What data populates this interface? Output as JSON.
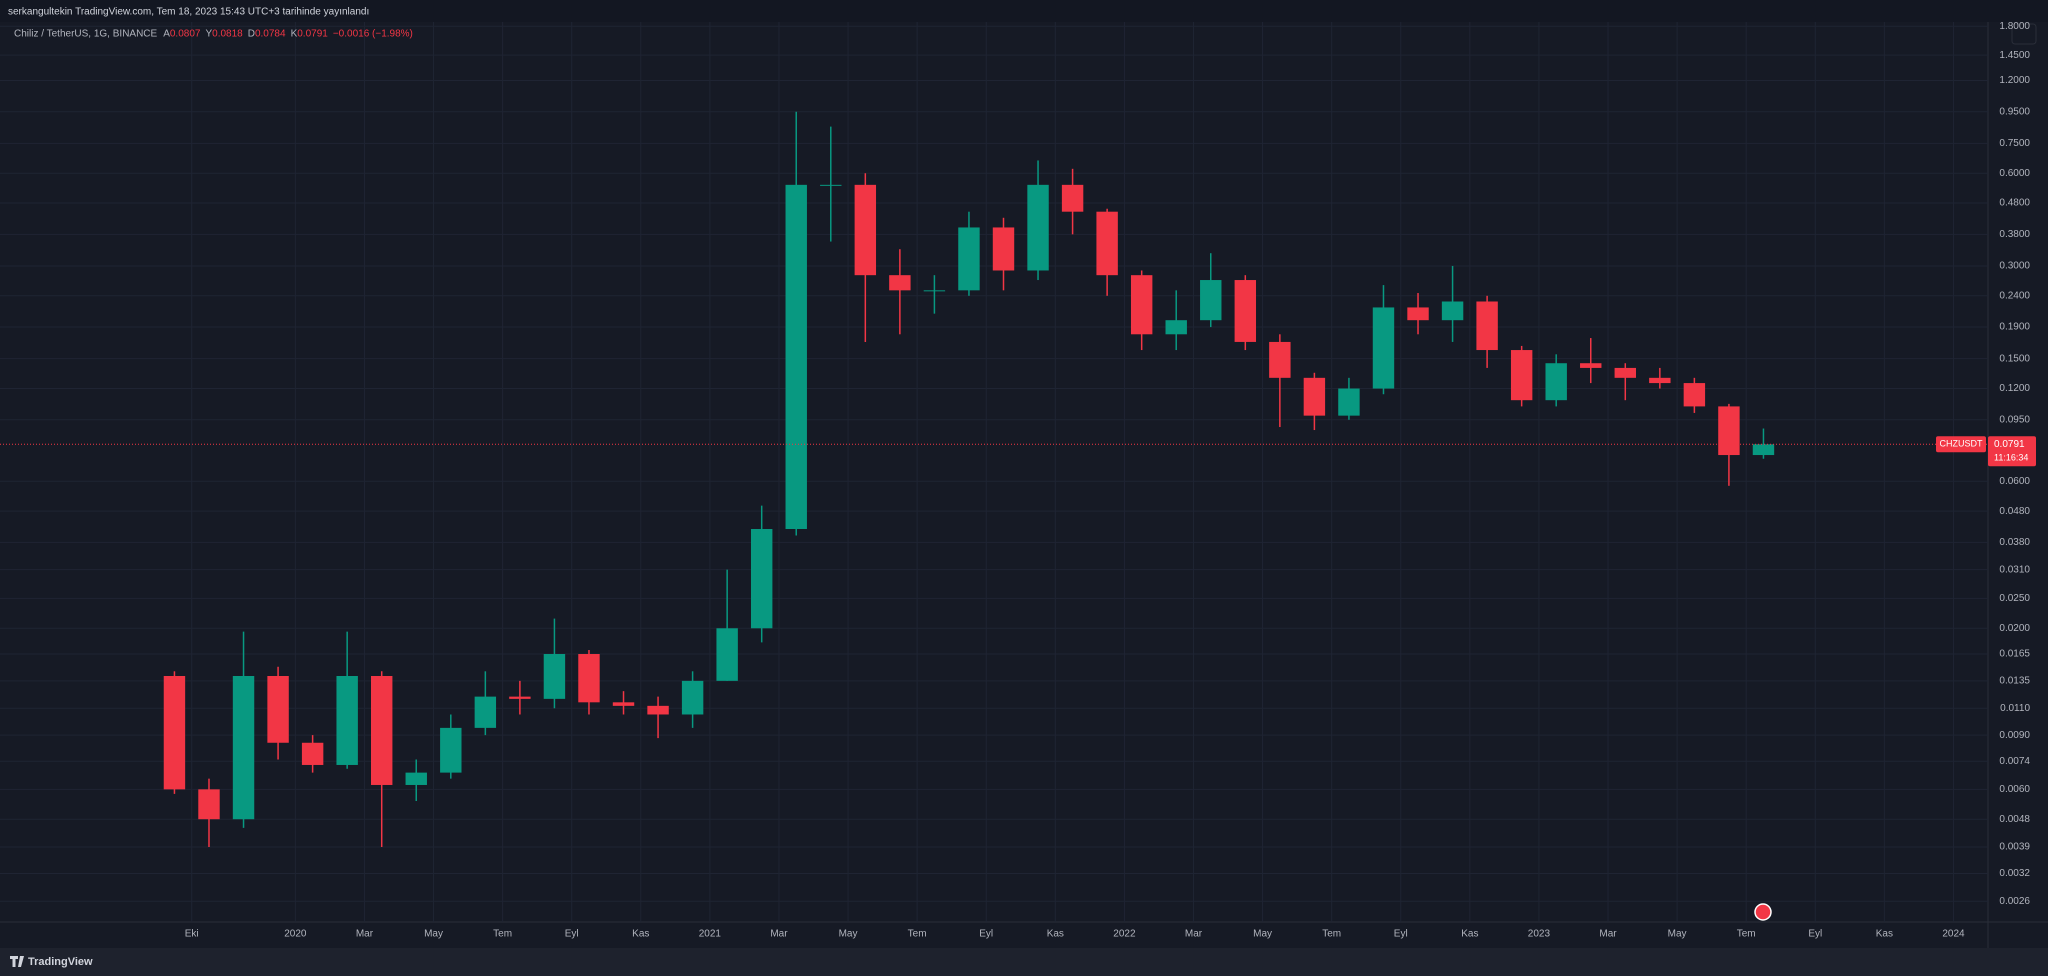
{
  "header": {
    "attribution": "serkangultekin TradingView.com, Tem 18, 2023 15:43 UTC+3 tarihinde yayınlandı"
  },
  "legend": {
    "symbol": "Chiliz / TetherUS, 1G, BINANCE",
    "ohlc": [
      {
        "label": "A",
        "value": 0.0807
      },
      {
        "label": "Y",
        "value": 0.0818
      },
      {
        "label": "D",
        "value": 0.0784
      },
      {
        "label": "K",
        "value": 0.0791
      }
    ],
    "change": "−0.0016 (−1.98%)"
  },
  "chart_data": {
    "type": "candlestick",
    "log_scale": true,
    "grid": true,
    "up_color": "#089981",
    "down_color": "#f23645",
    "x": [
      "2019-09",
      "2019-10",
      "2019-11",
      "2019-12",
      "2020-01",
      "2020-02",
      "2020-03",
      "2020-04",
      "2020-05",
      "2020-06",
      "2020-07",
      "2020-08",
      "2020-09",
      "2020-10",
      "2020-11",
      "2020-12",
      "2021-01",
      "2021-02",
      "2021-03",
      "2021-04",
      "2021-05",
      "2021-06",
      "2021-07",
      "2021-08",
      "2021-09",
      "2021-10",
      "2021-11",
      "2021-12",
      "2022-01",
      "2022-02",
      "2022-03",
      "2022-04",
      "2022-05",
      "2022-06",
      "2022-07",
      "2022-08",
      "2022-09",
      "2022-10",
      "2022-11",
      "2022-12",
      "2023-01",
      "2023-02",
      "2023-03",
      "2023-04",
      "2023-05",
      "2023-06",
      "2023-07"
    ],
    "open": [
      0.014,
      0.006,
      0.0048,
      0.014,
      0.0085,
      0.0072,
      0.014,
      0.0062,
      0.0068,
      0.0095,
      0.012,
      0.0118,
      0.0165,
      0.0115,
      0.0112,
      0.0105,
      0.0135,
      0.02,
      0.042,
      0.55,
      0.55,
      0.28,
      0.25,
      0.25,
      0.4,
      0.29,
      0.55,
      0.45,
      0.28,
      0.18,
      0.2,
      0.27,
      0.17,
      0.13,
      0.098,
      0.12,
      0.22,
      0.2,
      0.23,
      0.16,
      0.11,
      0.145,
      0.14,
      0.13,
      0.125,
      0.105,
      0.073
    ],
    "high": [
      0.0145,
      0.0065,
      0.0195,
      0.015,
      0.009,
      0.0195,
      0.0145,
      0.0075,
      0.0105,
      0.0145,
      0.0135,
      0.0215,
      0.017,
      0.0125,
      0.012,
      0.0145,
      0.031,
      0.05,
      0.95,
      0.85,
      0.6,
      0.34,
      0.28,
      0.45,
      0.43,
      0.66,
      0.62,
      0.46,
      0.29,
      0.25,
      0.33,
      0.28,
      0.18,
      0.135,
      0.13,
      0.26,
      0.245,
      0.3,
      0.24,
      0.165,
      0.155,
      0.175,
      0.145,
      0.14,
      0.13,
      0.107,
      0.089
    ],
    "low": [
      0.0058,
      0.0039,
      0.0045,
      0.0075,
      0.0068,
      0.007,
      0.0039,
      0.0055,
      0.0065,
      0.009,
      0.0105,
      0.011,
      0.0105,
      0.0105,
      0.0088,
      0.0095,
      0.0135,
      0.018,
      0.04,
      0.36,
      0.17,
      0.18,
      0.21,
      0.24,
      0.25,
      0.27,
      0.38,
      0.24,
      0.16,
      0.16,
      0.19,
      0.16,
      0.09,
      0.088,
      0.095,
      0.115,
      0.18,
      0.17,
      0.14,
      0.105,
      0.105,
      0.125,
      0.11,
      0.12,
      0.1,
      0.058,
      0.071
    ],
    "close": [
      0.006,
      0.0048,
      0.014,
      0.0085,
      0.0072,
      0.014,
      0.0062,
      0.0068,
      0.0095,
      0.012,
      0.0118,
      0.0165,
      0.0115,
      0.0112,
      0.0105,
      0.0135,
      0.02,
      0.042,
      0.55,
      0.55,
      0.28,
      0.25,
      0.25,
      0.4,
      0.29,
      0.55,
      0.45,
      0.28,
      0.18,
      0.2,
      0.27,
      0.17,
      0.13,
      0.098,
      0.12,
      0.22,
      0.2,
      0.23,
      0.16,
      0.11,
      0.145,
      0.14,
      0.13,
      0.125,
      0.105,
      0.073,
      0.0791
    ],
    "xlim": [
      "2019-05",
      "2024-02"
    ],
    "xticks": [
      {
        "value": "2019-10",
        "label": "Eki"
      },
      {
        "value": "2020-01",
        "label": "2020"
      },
      {
        "value": "2020-03",
        "label": "Mar"
      },
      {
        "value": "2020-05",
        "label": "May"
      },
      {
        "value": "2020-07",
        "label": "Tem"
      },
      {
        "value": "2020-09",
        "label": "Eyl"
      },
      {
        "value": "2020-11",
        "label": "Kas"
      },
      {
        "value": "2021-01",
        "label": "2021"
      },
      {
        "value": "2021-03",
        "label": "Mar"
      },
      {
        "value": "2021-05",
        "label": "May"
      },
      {
        "value": "2021-07",
        "label": "Tem"
      },
      {
        "value": "2021-09",
        "label": "Eyl"
      },
      {
        "value": "2021-11",
        "label": "Kas"
      },
      {
        "value": "2022-01",
        "label": "2022"
      },
      {
        "value": "2022-03",
        "label": "Mar"
      },
      {
        "value": "2022-05",
        "label": "May"
      },
      {
        "value": "2022-07",
        "label": "Tem"
      },
      {
        "value": "2022-09",
        "label": "Eyl"
      },
      {
        "value": "2022-11",
        "label": "Kas"
      },
      {
        "value": "2023-01",
        "label": "2023"
      },
      {
        "value": "2023-03",
        "label": "Mar"
      },
      {
        "value": "2023-05",
        "label": "May"
      },
      {
        "value": "2023-07",
        "label": "Tem"
      },
      {
        "value": "2023-09",
        "label": "Eyl"
      },
      {
        "value": "2023-11",
        "label": "Kas"
      },
      {
        "value": "2024-01",
        "label": "2024"
      }
    ],
    "ylim": [
      0.00226,
      1.83
    ],
    "yticks": [
      {
        "value": 1.8,
        "label": "1.8000"
      },
      {
        "value": 1.45,
        "label": "1.4500"
      },
      {
        "value": 1.2,
        "label": "1.2000"
      },
      {
        "value": 0.95,
        "label": "0.9500"
      },
      {
        "value": 0.75,
        "label": "0.7500"
      },
      {
        "value": 0.6,
        "label": "0.6000"
      },
      {
        "value": 0.48,
        "label": "0.4800"
      },
      {
        "value": 0.38,
        "label": "0.3800"
      },
      {
        "value": 0.3,
        "label": "0.3000"
      },
      {
        "value": 0.24,
        "label": "0.2400"
      },
      {
        "value": 0.19,
        "label": "0.1900"
      },
      {
        "value": 0.15,
        "label": "0.1500"
      },
      {
        "value": 0.12,
        "label": "0.1200"
      },
      {
        "value": 0.095,
        "label": "0.0950"
      },
      {
        "value": 0.06,
        "label": "0.0600"
      },
      {
        "value": 0.048,
        "label": "0.0480"
      },
      {
        "value": 0.038,
        "label": "0.0380"
      },
      {
        "value": 0.031,
        "label": "0.0310"
      },
      {
        "value": 0.025,
        "label": "0.0250"
      },
      {
        "value": 0.02,
        "label": "0.0200"
      },
      {
        "value": 0.0165,
        "label": "0.0165"
      },
      {
        "value": 0.0135,
        "label": "0.0135"
      },
      {
        "value": 0.011,
        "label": "0.0110"
      },
      {
        "value": 0.009,
        "label": "0.0090"
      },
      {
        "value": 0.0074,
        "label": "0.0074"
      },
      {
        "value": 0.006,
        "label": "0.0060"
      },
      {
        "value": 0.0048,
        "label": "0.0048"
      },
      {
        "value": 0.0039,
        "label": "0.0039"
      },
      {
        "value": 0.0032,
        "label": "0.0032"
      },
      {
        "value": 0.0026,
        "label": "0.0026"
      }
    ],
    "last_price": {
      "symbol": "CHZUSDT",
      "value": 0.0791,
      "countdown": "11:16:34",
      "color": "#f23645"
    }
  },
  "footer": {
    "brand": "TradingView"
  }
}
